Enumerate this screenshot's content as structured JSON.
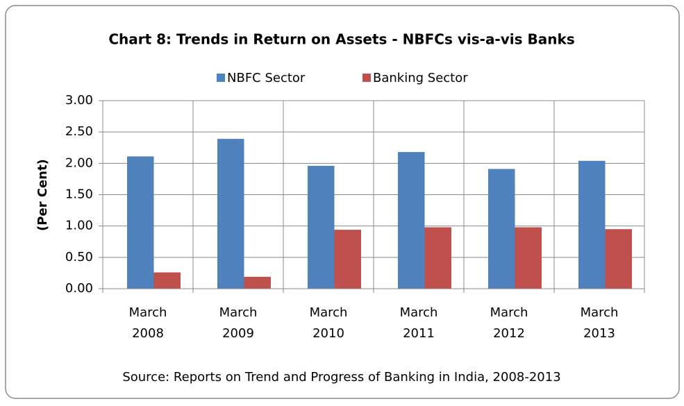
{
  "chart_data": {
    "type": "bar",
    "title": "Chart 8: Trends in Return on Assets - NBFCs vis-a-vis Banks",
    "y_label": "(Per Cent)",
    "source": "Source: Reports on Trend and Progress of Banking in India, 2008-2013",
    "categories": [
      "March 2008",
      "March 2009",
      "March 2010",
      "March 2011",
      "March 2012",
      "March 2013"
    ],
    "series": [
      {
        "name": "NBFC Sector",
        "color": "#4f81bd",
        "values": [
          2.11,
          2.39,
          1.96,
          2.18,
          1.91,
          2.04
        ]
      },
      {
        "name": "Banking Sector",
        "color": "#c0504d",
        "values": [
          0.26,
          0.19,
          0.94,
          0.98,
          0.98,
          0.95
        ]
      }
    ],
    "ylim": [
      0,
      3
    ],
    "yticks": [
      {
        "value": 0,
        "label": "0.00"
      },
      {
        "value": 0.5,
        "label": "0.50"
      },
      {
        "value": 1,
        "label": "1.00"
      },
      {
        "value": 1.5,
        "label": "1.50"
      },
      {
        "value": 2,
        "label": "2.00"
      },
      {
        "value": 2.5,
        "label": "2.50"
      },
      {
        "value": 3,
        "label": "3.00"
      }
    ],
    "grid": true,
    "legend": "top"
  }
}
